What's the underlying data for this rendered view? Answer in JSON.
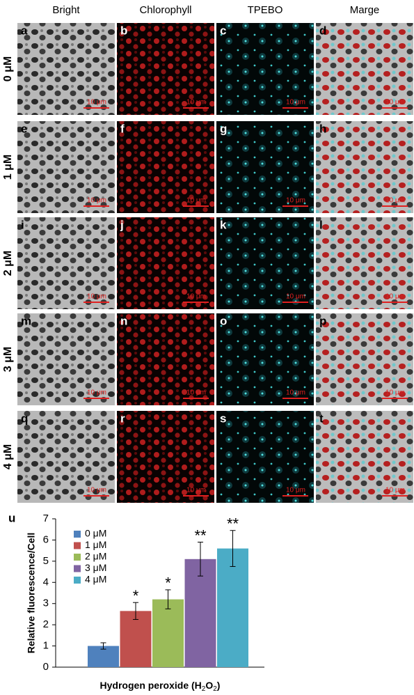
{
  "columns": [
    "Bright",
    "Chlorophyll",
    "TPEBO",
    "Marge"
  ],
  "rows": [
    {
      "label": "0 μM",
      "panels": [
        {
          "letter": "a",
          "scale_bar": "10 μm"
        },
        {
          "letter": "b",
          "scale_bar": "10 μm"
        },
        {
          "letter": "c",
          "scale_bar": "10 μm"
        },
        {
          "letter": "d",
          "scale_bar": "10 μm"
        }
      ]
    },
    {
      "label": "1 μM",
      "panels": [
        {
          "letter": "e",
          "scale_bar": "10 μm"
        },
        {
          "letter": "f",
          "scale_bar": "10 μm"
        },
        {
          "letter": "g",
          "scale_bar": "10 μm"
        },
        {
          "letter": "h",
          "scale_bar": "10 μm"
        }
      ]
    },
    {
      "label": "2 μM",
      "panels": [
        {
          "letter": "i",
          "scale_bar": "10 μm"
        },
        {
          "letter": "j",
          "scale_bar": "10 μm"
        },
        {
          "letter": "k",
          "scale_bar": "10 μm"
        },
        {
          "letter": "l",
          "scale_bar": "10 μm"
        }
      ]
    },
    {
      "label": "3 μM",
      "panels": [
        {
          "letter": "m",
          "scale_bar": "10 μm"
        },
        {
          "letter": "n",
          "scale_bar": "10 μm"
        },
        {
          "letter": "o",
          "scale_bar": "10 μm"
        },
        {
          "letter": "p",
          "scale_bar": "10 μm"
        }
      ]
    },
    {
      "label": "4 μM",
      "panels": [
        {
          "letter": "q",
          "scale_bar": "10 μm"
        },
        {
          "letter": "r",
          "scale_bar": "10 μm"
        },
        {
          "letter": "s",
          "scale_bar": "10 μm"
        },
        {
          "letter": "t",
          "scale_bar": "10 μm"
        }
      ]
    }
  ],
  "chart_data": {
    "type": "bar",
    "panel_label": "u",
    "y_label": "Relative fluorescence/Cell",
    "x_label": [
      "Hydrogen peroxide (H",
      "2",
      "O",
      "2",
      ")"
    ],
    "ylim": [
      0,
      7
    ],
    "yticks": [
      0,
      1,
      2,
      3,
      4,
      5,
      6,
      7
    ],
    "series": [
      {
        "name": "0 μM",
        "color": "#4f81bd",
        "values": [
          1.0
        ],
        "errors": [
          0.15
        ]
      },
      {
        "name": "1 μM",
        "color": "#c0504d",
        "values": [
          2.65
        ],
        "errors": [
          0.4
        ],
        "significance": "*"
      },
      {
        "name": "2 μM",
        "color": "#9bbb59",
        "values": [
          3.2
        ],
        "errors": [
          0.45
        ],
        "significance": "*"
      },
      {
        "name": "3 μM",
        "color": "#8064a2",
        "values": [
          5.1
        ],
        "errors": [
          0.8
        ],
        "significance": "**"
      },
      {
        "name": "4 μM",
        "color": "#4bacc6",
        "values": [
          5.6
        ],
        "errors": [
          0.85
        ],
        "significance": "**"
      }
    ]
  }
}
